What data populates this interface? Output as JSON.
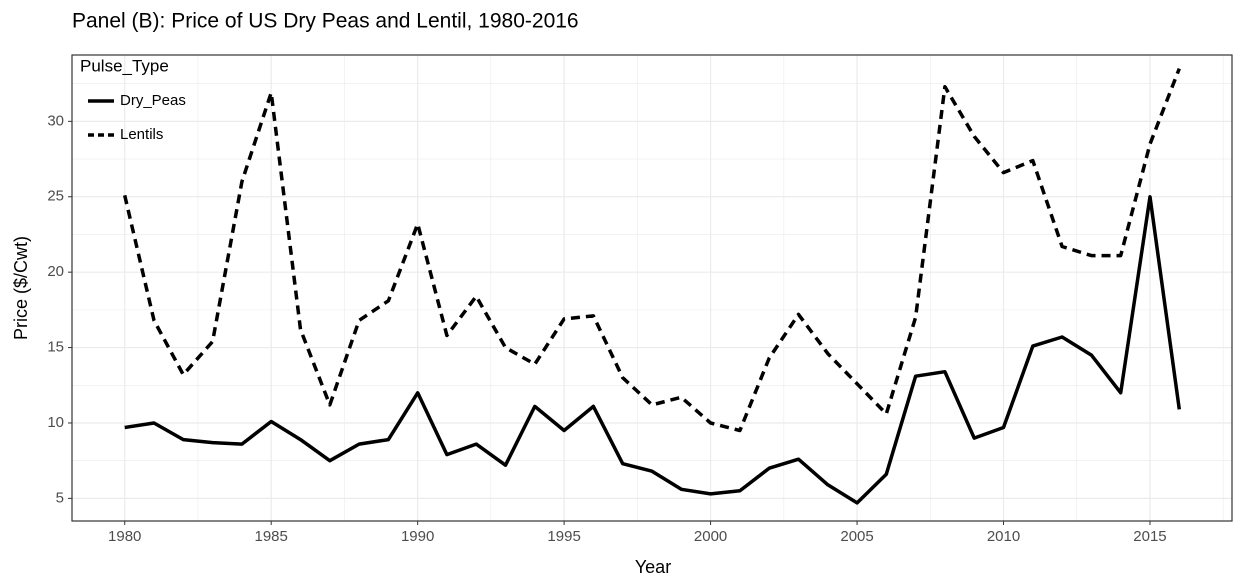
{
  "chart_data": {
    "type": "line",
    "title": "Panel (B): Price of US Dry Peas and Lentil, 1980-2016",
    "x_label": "Year",
    "y_label": "Price ($/Cwt)",
    "legend_title": "Pulse_Type",
    "legend_position": "top-left",
    "grid": true,
    "minor_grid": true,
    "x": [
      1980,
      1981,
      1982,
      1983,
      1984,
      1985,
      1986,
      1987,
      1988,
      1989,
      1990,
      1991,
      1992,
      1993,
      1994,
      1995,
      1996,
      1997,
      1998,
      1999,
      2000,
      2001,
      2002,
      2003,
      2004,
      2005,
      2006,
      2007,
      2008,
      2009,
      2010,
      2011,
      2012,
      2013,
      2014,
      2015,
      2016
    ],
    "xlim": [
      1978.2,
      2017.8
    ],
    "xticks": [
      1980,
      1985,
      1990,
      1995,
      2000,
      2005,
      2010,
      2015
    ],
    "ylim": [
      3.5,
      34.4
    ],
    "yticks": [
      5,
      10,
      15,
      20,
      25,
      30
    ],
    "series": [
      {
        "name": "Dry_Peas",
        "color": "#000000",
        "dash": "solid",
        "values": [
          9.7,
          10.0,
          8.9,
          8.7,
          8.6,
          10.1,
          8.9,
          7.5,
          8.6,
          8.9,
          12.0,
          7.9,
          8.6,
          7.2,
          11.1,
          9.5,
          11.1,
          7.3,
          6.8,
          5.6,
          5.3,
          5.5,
          7.0,
          7.6,
          5.9,
          4.7,
          6.6,
          13.1,
          13.4,
          9.0,
          9.7,
          15.1,
          15.7,
          14.5,
          12.0,
          25.0,
          10.9
        ]
      },
      {
        "name": "Lentils",
        "color": "#000000",
        "dash": "dashed",
        "values": [
          25.1,
          16.8,
          13.2,
          15.4,
          26.0,
          31.9,
          16.2,
          11.2,
          16.8,
          18.1,
          23.2,
          15.8,
          18.4,
          15.0,
          13.9,
          16.9,
          17.1,
          13.0,
          11.2,
          11.7,
          10.0,
          9.5,
          14.3,
          17.2,
          14.6,
          12.6,
          10.6,
          17.0,
          32.3,
          29.0,
          26.6,
          27.4,
          21.7,
          21.1,
          21.1,
          28.5,
          33.5
        ]
      }
    ]
  }
}
